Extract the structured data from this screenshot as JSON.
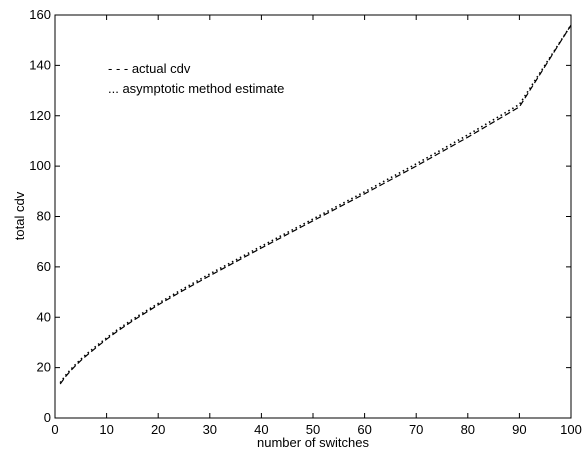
{
  "chart_data": {
    "type": "line",
    "xlabel": "number  of switches",
    "ylabel": "total cdv",
    "xlim": [
      0,
      100
    ],
    "ylim": [
      0,
      160
    ],
    "xticks": [
      0,
      10,
      20,
      30,
      40,
      50,
      60,
      70,
      80,
      90,
      100
    ],
    "yticks": [
      0,
      20,
      40,
      60,
      80,
      100,
      120,
      140,
      160
    ],
    "grid": false,
    "legend": {
      "placement": "top-left"
    },
    "x": [
      1,
      2,
      3,
      4,
      5,
      6,
      8,
      10,
      12,
      15,
      20,
      25,
      30,
      40,
      50,
      60,
      70,
      80,
      90,
      100
    ],
    "series": [
      {
        "name": "actual cdv",
        "legend_label": "- - -  actual cdv",
        "values": [
          13.5,
          16.3,
          18.7,
          20.8,
          22.8,
          24.6,
          28.0,
          31.3,
          34.3,
          38.5,
          44.9,
          50.8,
          56.5,
          67.5,
          78.3,
          89.0,
          100.0,
          111.5,
          123.5,
          156.0
        ]
      },
      {
        "name": "asymptotic method estimate",
        "legend_label": "...  asymptotic method estimate",
        "values": [
          14.0,
          16.8,
          19.2,
          21.3,
          23.3,
          25.2,
          28.6,
          31.8,
          34.9,
          39.1,
          45.5,
          51.5,
          57.2,
          68.2,
          79.0,
          89.8,
          100.9,
          112.4,
          124.5,
          156.0
        ]
      }
    ]
  }
}
